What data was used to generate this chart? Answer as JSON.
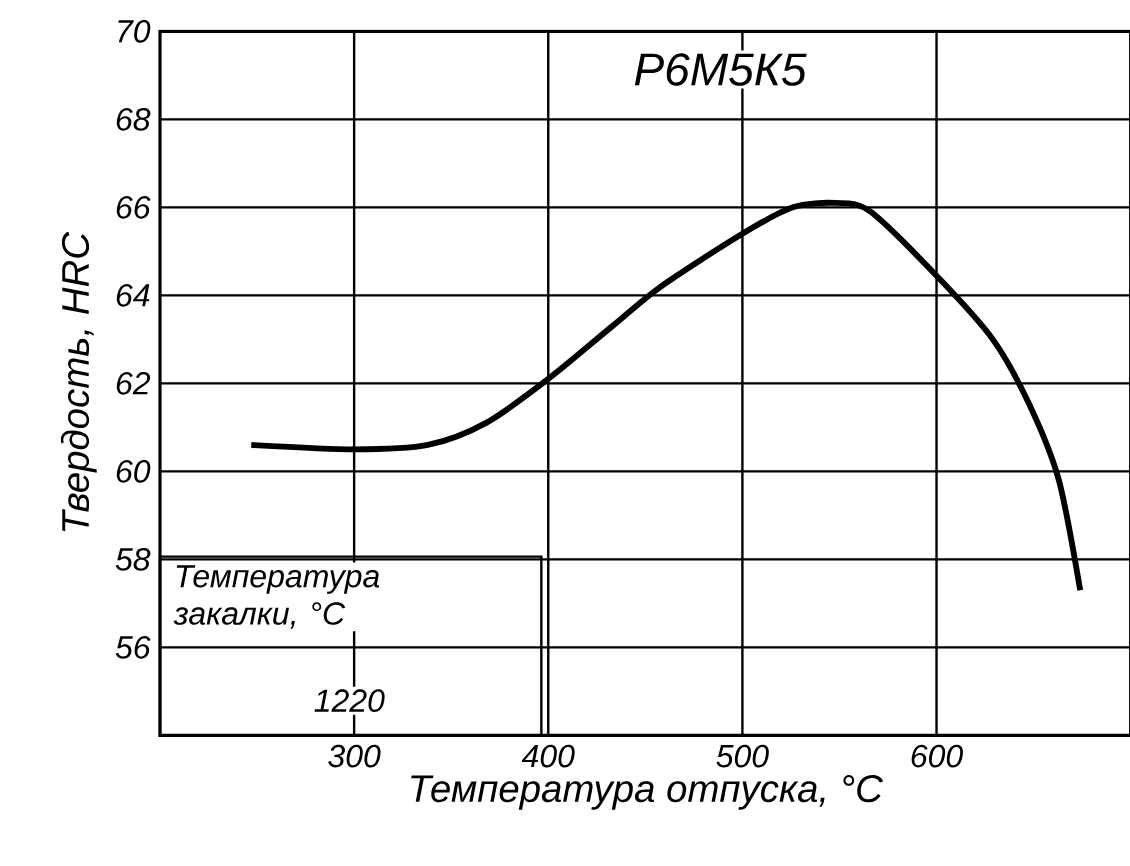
{
  "chart_data": {
    "type": "line",
    "title": "Р6М5К5",
    "xlabel": "Температура отпуска, °C",
    "ylabel": "Твердость, HRC",
    "annotations": [
      "Температура закалки, °C",
      "1220"
    ],
    "x": [
      247,
      300,
      338,
      368,
      400,
      433,
      458,
      500,
      526,
      548,
      566,
      601,
      629,
      648,
      663,
      674
    ],
    "series": [
      {
        "color": "#000000",
        "values": [
          60.6,
          60.5,
          60.6,
          61.1,
          62.1,
          63.3,
          64.2,
          65.4,
          66.0,
          66.1,
          65.9,
          64.4,
          63.0,
          61.5,
          59.8,
          57.3
        ]
      }
    ],
    "xlim": [
      200,
      700
    ],
    "ylim": [
      54,
      70
    ],
    "xticks": [
      300,
      400,
      500,
      600
    ],
    "yticks": [
      56,
      58,
      60,
      62,
      64,
      66,
      68,
      70
    ],
    "grid": true,
    "marker": "none",
    "line_style": "solid"
  }
}
